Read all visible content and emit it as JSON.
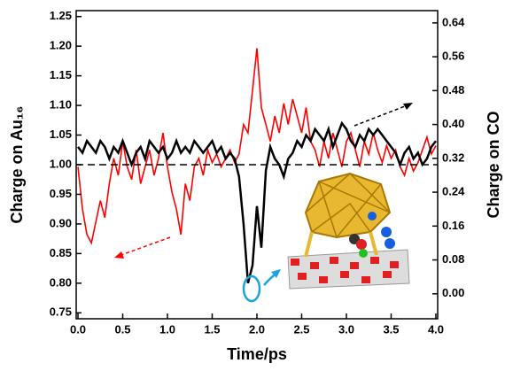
{
  "chart_data": {
    "type": "line",
    "x_label": "Time/ps",
    "y_label": "Charge on Au₁₆",
    "y2_label": "Charge on CO",
    "x": [
      0.0,
      0.05,
      0.1,
      0.15,
      0.2,
      0.25,
      0.3,
      0.35,
      0.4,
      0.45,
      0.5,
      0.55,
      0.6,
      0.65,
      0.7,
      0.75,
      0.8,
      0.85,
      0.9,
      0.95,
      1.0,
      1.05,
      1.1,
      1.15,
      1.2,
      1.25,
      1.3,
      1.35,
      1.4,
      1.45,
      1.5,
      1.55,
      1.6,
      1.65,
      1.7,
      1.75,
      1.8,
      1.85,
      1.9,
      1.95,
      2.0,
      2.05,
      2.1,
      2.15,
      2.2,
      2.25,
      2.3,
      2.35,
      2.4,
      2.45,
      2.5,
      2.55,
      2.6,
      2.65,
      2.7,
      2.75,
      2.8,
      2.85,
      2.9,
      2.95,
      3.0,
      3.05,
      3.1,
      3.15,
      3.2,
      3.25,
      3.3,
      3.35,
      3.4,
      3.45,
      3.5,
      3.55,
      3.6,
      3.65,
      3.7,
      3.75,
      3.8,
      3.85,
      3.9,
      3.95,
      4.0
    ],
    "series": [
      {
        "name": "Charge on Au₁₆",
        "color": "#000000",
        "axis": "y",
        "values": [
          1.03,
          1.02,
          1.04,
          1.03,
          1.02,
          1.04,
          1.03,
          1.01,
          1.03,
          1.02,
          1.04,
          1.02,
          1.0,
          1.02,
          1.03,
          1.01,
          1.04,
          1.03,
          1.02,
          1.03,
          1.01,
          1.02,
          1.04,
          1.02,
          1.03,
          1.02,
          1.04,
          1.03,
          1.02,
          1.03,
          1.04,
          1.02,
          1.03,
          1.01,
          1.02,
          1.01,
          0.98,
          0.9,
          0.8,
          0.83,
          0.93,
          0.86,
          0.99,
          1.03,
          1.01,
          1.0,
          0.98,
          1.01,
          1.02,
          1.04,
          1.03,
          1.05,
          1.04,
          1.06,
          1.05,
          1.04,
          1.06,
          1.03,
          1.05,
          1.07,
          1.06,
          1.04,
          1.03,
          1.05,
          1.04,
          1.06,
          1.05,
          1.06,
          1.05,
          1.04,
          1.03,
          1.02,
          1.0,
          1.02,
          1.03,
          1.01,
          1.02,
          1.0,
          1.01,
          1.03,
          1.04
        ]
      },
      {
        "name": "Charge on CO",
        "color": "#ff0000",
        "axis": "y2",
        "values": [
          0.3,
          0.2,
          0.14,
          0.12,
          0.17,
          0.22,
          0.18,
          0.26,
          0.32,
          0.28,
          0.36,
          0.3,
          0.27,
          0.34,
          0.26,
          0.3,
          0.34,
          0.28,
          0.32,
          0.38,
          0.3,
          0.24,
          0.2,
          0.14,
          0.26,
          0.22,
          0.3,
          0.32,
          0.28,
          0.34,
          0.31,
          0.33,
          0.3,
          0.32,
          0.34,
          0.31,
          0.33,
          0.4,
          0.38,
          0.48,
          0.58,
          0.44,
          0.4,
          0.36,
          0.42,
          0.38,
          0.45,
          0.4,
          0.46,
          0.42,
          0.38,
          0.44,
          0.36,
          0.34,
          0.3,
          0.36,
          0.32,
          0.38,
          0.34,
          0.3,
          0.36,
          0.38,
          0.34,
          0.3,
          0.36,
          0.33,
          0.38,
          0.34,
          0.31,
          0.35,
          0.32,
          0.34,
          0.3,
          0.28,
          0.32,
          0.29,
          0.31,
          0.34,
          0.37,
          0.33,
          0.35
        ]
      }
    ],
    "hline": 1.0,
    "xlim": [
      -0.02,
      4.02
    ],
    "xticks": [
      {
        "value": 0,
        "label": "0.0"
      },
      0.5,
      {
        "value": 1,
        "label": "1.0"
      },
      1.5,
      {
        "value": 2,
        "label": "2.0"
      },
      2.5,
      {
        "value": 3,
        "label": "3.0"
      },
      3.5,
      {
        "value": 4,
        "label": "4.0"
      }
    ],
    "ylim": [
      0.74,
      1.26
    ],
    "yticks": [
      0.75,
      {
        "value": 0.8,
        "label": "0.80"
      },
      0.85,
      {
        "value": 0.9,
        "label": "0.90"
      },
      0.95,
      {
        "value": 1,
        "label": "1.00"
      },
      1.05,
      {
        "value": 1.1,
        "label": "1.10"
      },
      1.15,
      {
        "value": 1.2,
        "label": "1.20"
      },
      1.25
    ],
    "y2lim": [
      -0.059,
      0.669
    ],
    "y2ticks": [
      {
        "value": 0,
        "label": "0.00"
      },
      0.08,
      0.16,
      0.24,
      {
        "value": 0.4,
        "label": "0.40"
      },
      0.32,
      0.48,
      0.56,
      0.64
    ]
  }
}
